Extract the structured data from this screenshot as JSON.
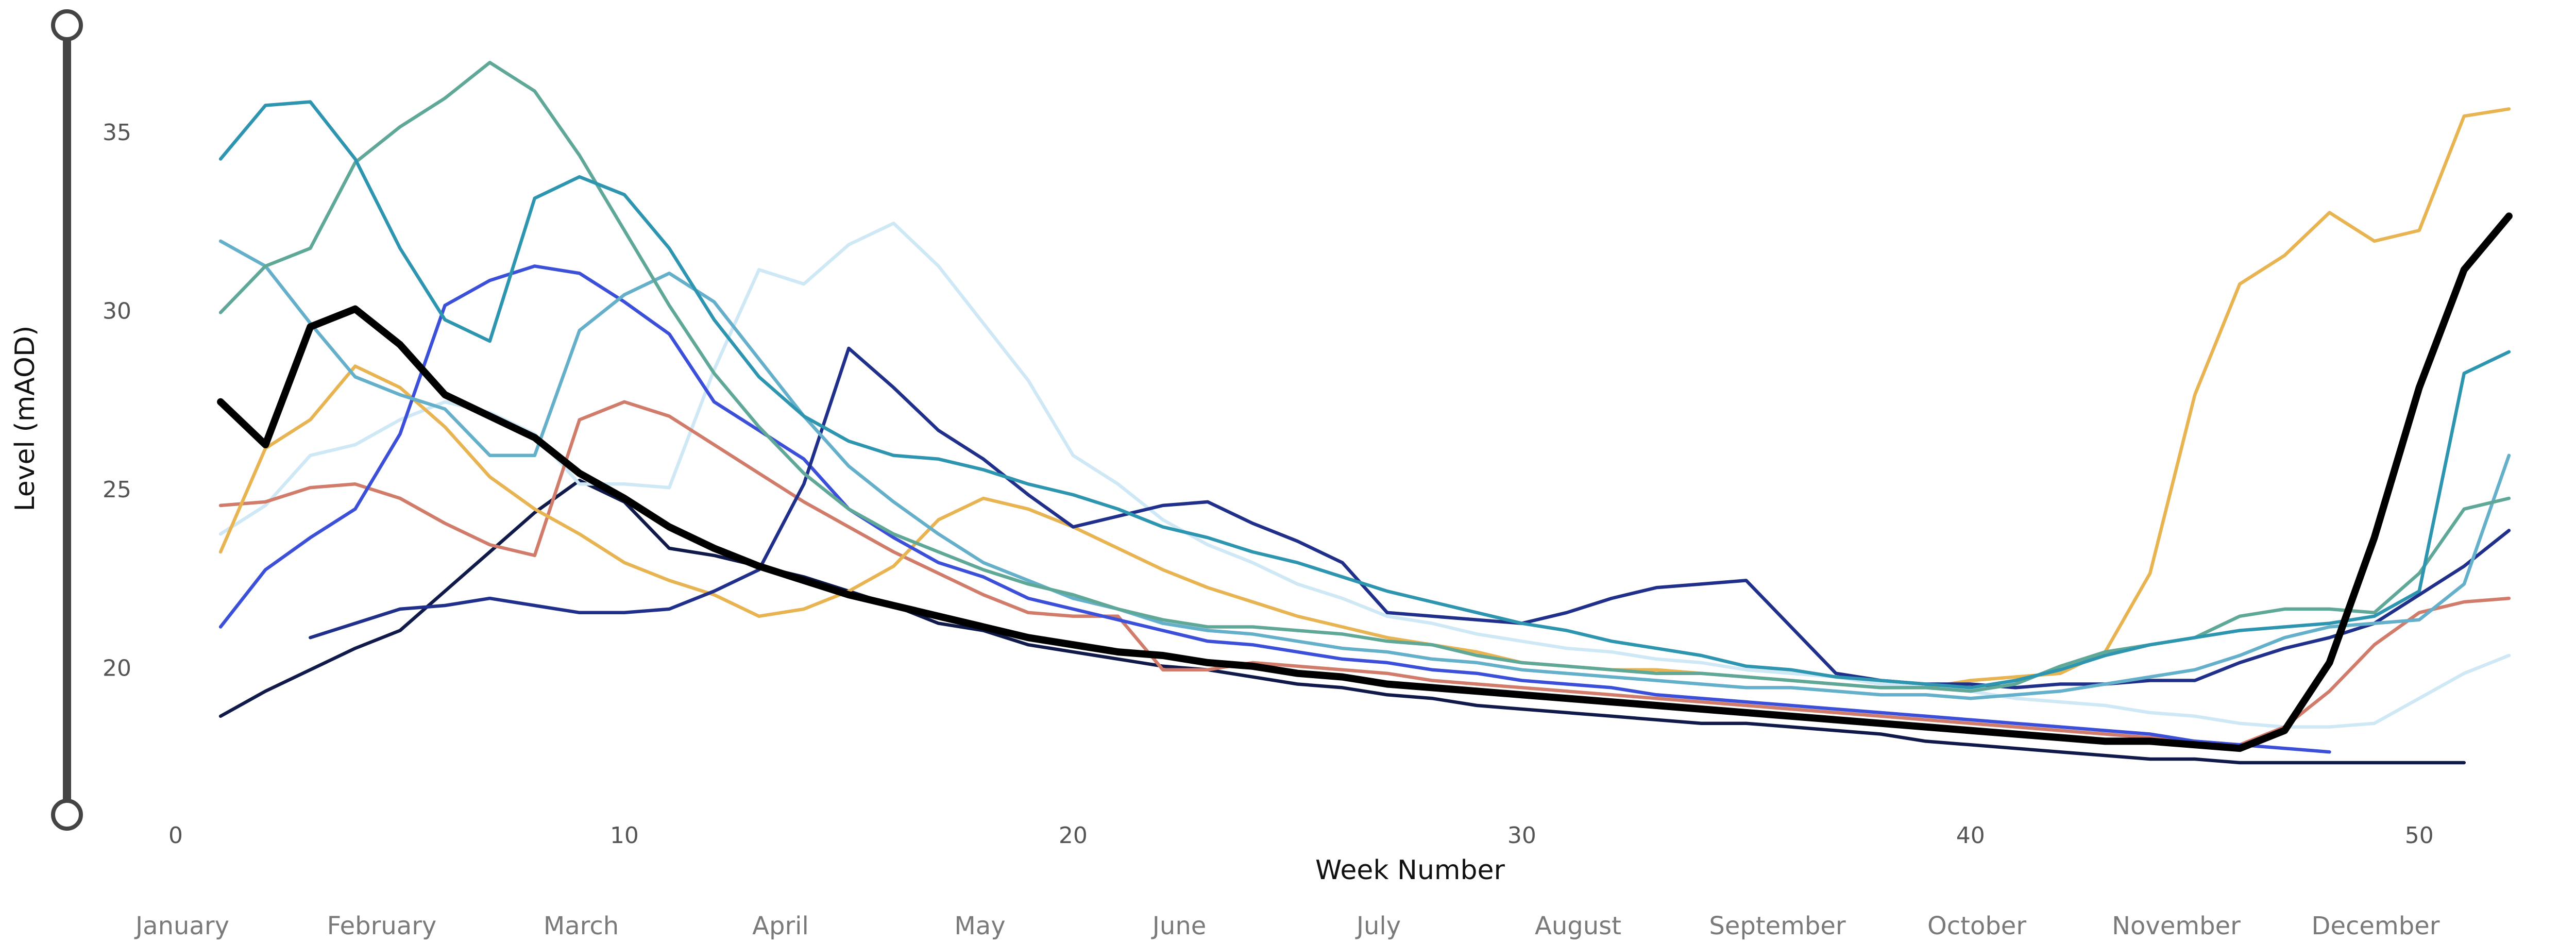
{
  "chart_data": {
    "type": "line",
    "x_label": "Week Number",
    "y_label": "Level (mAOD)",
    "month_labels": [
      "January",
      "February",
      "March",
      "April",
      "May",
      "June",
      "July",
      "August",
      "September",
      "October",
      "November",
      "December"
    ],
    "x": [
      1,
      2,
      3,
      4,
      5,
      6,
      7,
      8,
      9,
      10,
      11,
      12,
      13,
      14,
      15,
      16,
      17,
      18,
      19,
      20,
      21,
      22,
      23,
      24,
      25,
      26,
      27,
      28,
      29,
      30,
      31,
      32,
      33,
      34,
      35,
      36,
      37,
      38,
      39,
      40,
      41,
      42,
      43,
      44,
      45,
      46,
      47,
      48,
      49,
      50,
      51,
      52
    ],
    "xlim": [
      0,
      53
    ],
    "xticks": [
      0,
      10,
      20,
      30,
      40,
      50
    ],
    "ylim": [
      16,
      38
    ],
    "yticks": [
      20,
      25,
      30,
      35
    ],
    "grid": false,
    "series": [
      {
        "color": "#0f1a4a",
        "values": [
          18.7,
          19.4,
          20.0,
          20.6,
          21.1,
          22.2,
          23.3,
          24.4,
          25.3,
          24.7,
          23.4,
          23.2,
          22.9,
          22.6,
          22.2,
          21.8,
          21.3,
          21.1,
          20.7,
          20.5,
          20.3,
          20.1,
          20.0,
          19.8,
          19.6,
          19.5,
          19.3,
          19.2,
          19.0,
          18.9,
          18.8,
          18.7,
          18.6,
          18.5,
          18.5,
          18.4,
          18.3,
          18.2,
          18.0,
          17.9,
          17.8,
          17.7,
          17.6,
          17.5,
          17.5,
          17.4,
          17.4,
          17.4,
          17.4,
          17.4,
          17.4,
          null
        ]
      },
      {
        "color": "#cfe8f5",
        "values": [
          23.8,
          24.6,
          26.0,
          26.3,
          27.0,
          27.5,
          27.2,
          26.6,
          25.2,
          25.2,
          25.1,
          28.4,
          31.2,
          30.8,
          31.9,
          32.5,
          31.3,
          29.7,
          28.1,
          26.0,
          25.2,
          24.2,
          23.5,
          23.0,
          22.4,
          22.0,
          21.5,
          21.3,
          21.0,
          20.8,
          20.6,
          20.5,
          20.3,
          20.2,
          20.0,
          19.9,
          19.8,
          19.6,
          19.5,
          19.4,
          19.2,
          19.1,
          19.0,
          18.8,
          18.7,
          18.5,
          18.4,
          18.4,
          18.5,
          19.2,
          19.9,
          20.4
        ]
      },
      {
        "color": "#d17b6a",
        "values": [
          24.6,
          24.7,
          25.1,
          25.2,
          24.8,
          24.1,
          23.5,
          23.2,
          27.0,
          27.5,
          27.1,
          26.3,
          25.5,
          24.7,
          24.0,
          23.3,
          22.7,
          22.1,
          21.6,
          21.5,
          21.5,
          20.0,
          20.0,
          20.2,
          20.1,
          20.0,
          19.9,
          19.7,
          19.6,
          19.5,
          19.4,
          19.3,
          19.2,
          19.1,
          19.0,
          18.9,
          18.8,
          18.7,
          18.6,
          18.5,
          18.4,
          18.3,
          18.2,
          18.1,
          18.0,
          17.9,
          18.4,
          19.4,
          20.7,
          21.6,
          21.9,
          22.0
        ]
      },
      {
        "color": "#e8b452",
        "values": [
          23.3,
          26.2,
          27.0,
          28.5,
          27.9,
          26.8,
          25.4,
          24.5,
          23.8,
          23.0,
          22.5,
          22.1,
          21.5,
          21.7,
          22.2,
          22.9,
          24.2,
          24.8,
          24.5,
          24.0,
          23.4,
          22.8,
          22.3,
          21.9,
          21.5,
          21.2,
          20.9,
          20.7,
          20.5,
          20.2,
          20.1,
          20.0,
          20.0,
          19.9,
          19.8,
          19.7,
          19.6,
          19.5,
          19.5,
          19.7,
          19.8,
          19.9,
          20.5,
          22.7,
          27.7,
          30.8,
          31.6,
          32.8,
          32.0,
          32.3,
          35.5,
          35.7
        ]
      },
      {
        "color": "#3b4fd8",
        "values": [
          21.2,
          22.8,
          23.7,
          24.5,
          26.6,
          30.2,
          30.9,
          31.3,
          31.1,
          30.3,
          29.4,
          27.5,
          26.7,
          25.9,
          24.5,
          23.7,
          23.0,
          22.6,
          22.0,
          21.7,
          21.4,
          21.1,
          20.8,
          20.7,
          20.5,
          20.3,
          20.2,
          20.0,
          19.9,
          19.7,
          19.6,
          19.5,
          19.3,
          19.2,
          19.1,
          19.0,
          18.9,
          18.8,
          18.7,
          18.6,
          18.5,
          18.4,
          18.3,
          18.2,
          18.0,
          17.9,
          17.8,
          17.7,
          null,
          null,
          null,
          null
        ]
      },
      {
        "color": "#1f2f8a",
        "values": [
          null,
          null,
          20.9,
          21.3,
          21.7,
          21.8,
          22.0,
          21.8,
          21.6,
          21.6,
          21.7,
          22.2,
          22.8,
          25.2,
          29.0,
          27.9,
          26.7,
          25.9,
          24.9,
          24.0,
          24.3,
          24.6,
          24.7,
          24.1,
          23.6,
          23.0,
          21.6,
          21.5,
          21.4,
          21.3,
          21.6,
          22.0,
          22.3,
          22.4,
          22.5,
          21.2,
          19.9,
          19.7,
          19.6,
          19.6,
          19.5,
          19.6,
          19.6,
          19.7,
          19.7,
          20.2,
          20.6,
          20.9,
          21.3,
          22.1,
          22.9,
          23.9
        ]
      },
      {
        "color": "#64afc9",
        "values": [
          32.0,
          31.3,
          29.7,
          28.2,
          27.7,
          27.3,
          26.0,
          26.0,
          29.5,
          30.5,
          31.1,
          30.3,
          28.7,
          27.1,
          25.7,
          24.7,
          23.8,
          23.0,
          22.5,
          22.0,
          21.7,
          21.3,
          21.1,
          21.0,
          20.8,
          20.6,
          20.5,
          20.3,
          20.2,
          20.0,
          19.9,
          19.8,
          19.7,
          19.6,
          19.5,
          19.5,
          19.4,
          19.3,
          19.3,
          19.2,
          19.3,
          19.4,
          19.6,
          19.8,
          20.0,
          20.4,
          20.9,
          21.2,
          21.3,
          21.4,
          22.4,
          26.0
        ]
      },
      {
        "color": "#5fa898",
        "values": [
          30.0,
          31.3,
          31.8,
          34.2,
          35.2,
          36.0,
          37.0,
          36.2,
          34.4,
          32.3,
          30.2,
          28.3,
          26.8,
          25.5,
          24.5,
          23.8,
          23.3,
          22.8,
          22.4,
          22.1,
          21.7,
          21.4,
          21.2,
          21.2,
          21.1,
          21.0,
          20.8,
          20.7,
          20.4,
          20.2,
          20.1,
          20.0,
          19.9,
          19.9,
          19.8,
          19.7,
          19.6,
          19.5,
          19.5,
          19.4,
          19.6,
          20.1,
          20.5,
          20.7,
          20.9,
          21.5,
          21.7,
          21.7,
          21.6,
          22.7,
          24.5,
          24.8
        ]
      },
      {
        "color": "#2e95b0",
        "values": [
          34.3,
          35.8,
          35.9,
          34.3,
          31.8,
          29.8,
          29.2,
          33.2,
          33.8,
          33.3,
          31.8,
          29.8,
          28.2,
          27.1,
          26.4,
          26.0,
          25.9,
          25.6,
          25.2,
          24.9,
          24.5,
          24.0,
          23.7,
          23.3,
          23.0,
          22.6,
          22.2,
          21.9,
          21.6,
          21.3,
          21.1,
          20.8,
          20.6,
          20.4,
          20.1,
          20.0,
          19.8,
          19.7,
          19.6,
          19.5,
          19.7,
          20.0,
          20.4,
          20.7,
          20.9,
          21.1,
          21.2,
          21.3,
          21.5,
          22.2,
          28.3,
          28.9
        ]
      },
      {
        "color": "#000000",
        "emphasis": true,
        "values": [
          27.5,
          26.3,
          29.6,
          30.1,
          29.1,
          27.7,
          27.1,
          26.5,
          25.5,
          24.8,
          24.0,
          23.4,
          22.9,
          22.5,
          22.1,
          21.8,
          21.5,
          21.2,
          20.9,
          20.7,
          20.5,
          20.4,
          20.2,
          20.1,
          19.9,
          19.8,
          19.6,
          19.5,
          19.4,
          19.3,
          19.2,
          19.1,
          19.0,
          18.9,
          18.8,
          18.7,
          18.6,
          18.5,
          18.4,
          18.3,
          18.2,
          18.1,
          18.0,
          18.0,
          17.9,
          17.8,
          18.3,
          20.2,
          23.7,
          27.9,
          31.2,
          32.7
        ]
      }
    ]
  }
}
